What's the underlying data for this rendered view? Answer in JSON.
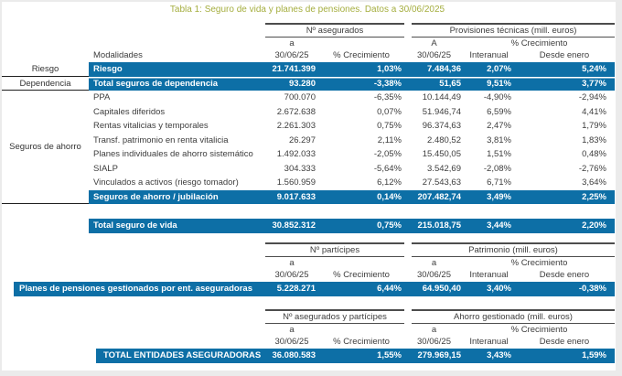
{
  "title": "Tabla 1: Seguro de vida y planes de pensiones. Datos a 30/06/2025",
  "colors": {
    "accent_blue": "#0d6fa6",
    "title_green": "#a5ae3f"
  },
  "table1": {
    "group_headers": [
      "Nº asegurados",
      "Provisiones técnicas (mill. euros)"
    ],
    "sub": {
      "a1": "a",
      "a2": "A",
      "growth": "% Crecimiento"
    },
    "columns": [
      "Modalidades",
      "30/06/25",
      "% Crecimiento",
      "30/06/25",
      "Interanual",
      "Desde enero"
    ],
    "side_labels": [
      "Riesgo",
      "Dependencia",
      "Seguros de ahorro"
    ],
    "rows": [
      {
        "label": "Riesgo",
        "highlight": true,
        "values": [
          "21.741.399",
          "1,03%",
          "7.484,36",
          "2,07%",
          "5,24%"
        ]
      },
      {
        "label": "Total seguros de dependencia",
        "highlight": true,
        "values": [
          "93.280",
          "-3,38%",
          "51,65",
          "9,51%",
          "3,77%"
        ]
      },
      {
        "label": "PPA",
        "highlight": false,
        "values": [
          "700.070",
          "-6,35%",
          "10.144,49",
          "-4,90%",
          "-2,94%"
        ]
      },
      {
        "label": "Capitales diferidos",
        "highlight": false,
        "values": [
          "2.672.638",
          "0,07%",
          "51.946,74",
          "6,59%",
          "4,41%"
        ]
      },
      {
        "label": "Rentas vitalicias y temporales",
        "highlight": false,
        "values": [
          "2.261.303",
          "0,75%",
          "96.374,63",
          "2,47%",
          "1,79%"
        ]
      },
      {
        "label": "Transf. patrimonio en renta vitalicia",
        "highlight": false,
        "values": [
          "26.297",
          "2,11%",
          "2.480,52",
          "3,81%",
          "1,83%"
        ]
      },
      {
        "label": "Planes individuales de ahorro sistemático",
        "highlight": false,
        "values": [
          "1.492.033",
          "-2,05%",
          "15.450,05",
          "1,51%",
          "0,48%"
        ]
      },
      {
        "label": "SIALP",
        "highlight": false,
        "values": [
          "304.333",
          "-5,64%",
          "3.542,69",
          "-2,08%",
          "-2,76%"
        ]
      },
      {
        "label": "Vinculados a activos (riesgo tomador)",
        "highlight": false,
        "values": [
          "1.560.959",
          "6,12%",
          "27.543,63",
          "6,71%",
          "3,64%"
        ]
      },
      {
        "label": "Seguros de ahorro / jubilación",
        "highlight": true,
        "values": [
          "9.017.633",
          "0,14%",
          "207.482,74",
          "3,49%",
          "2,25%"
        ]
      }
    ],
    "total_row": {
      "label": "Total seguro de vida",
      "values": [
        "30.852.312",
        "0,75%",
        "215.018,75",
        "3,44%",
        "2,20%"
      ]
    }
  },
  "table2": {
    "group_headers": [
      "Nº partícipes",
      "Patrimonio (mill. euros)"
    ],
    "sub": {
      "a1": "a",
      "a2": "a",
      "growth": "% Crecimiento"
    },
    "columns": [
      "30/06/25",
      "% Crecimiento",
      "30/06/25",
      "Interanual",
      "Desde enero"
    ],
    "row": {
      "label": "Planes de pensiones gestionados por ent. aseguradoras",
      "values": [
        "5.228.271",
        "6,44%",
        "64.950,40",
        "3,40%",
        "-0,38%"
      ]
    }
  },
  "table3": {
    "group_headers": [
      "Nº asegurados y partícipes",
      "Ahorro gestionado (mill. euros)"
    ],
    "sub": {
      "a1": "a",
      "a2": "a",
      "growth": "% Crecimiento"
    },
    "columns": [
      "30/06/25",
      "% Crecimiento",
      "30/06/25",
      "Interanual",
      "Desde enero"
    ],
    "row": {
      "label": "TOTAL ENTIDADES ASEGURADORAS",
      "values": [
        "36.080.583",
        "1,55%",
        "279.969,15",
        "3,43%",
        "1,59%"
      ]
    }
  }
}
